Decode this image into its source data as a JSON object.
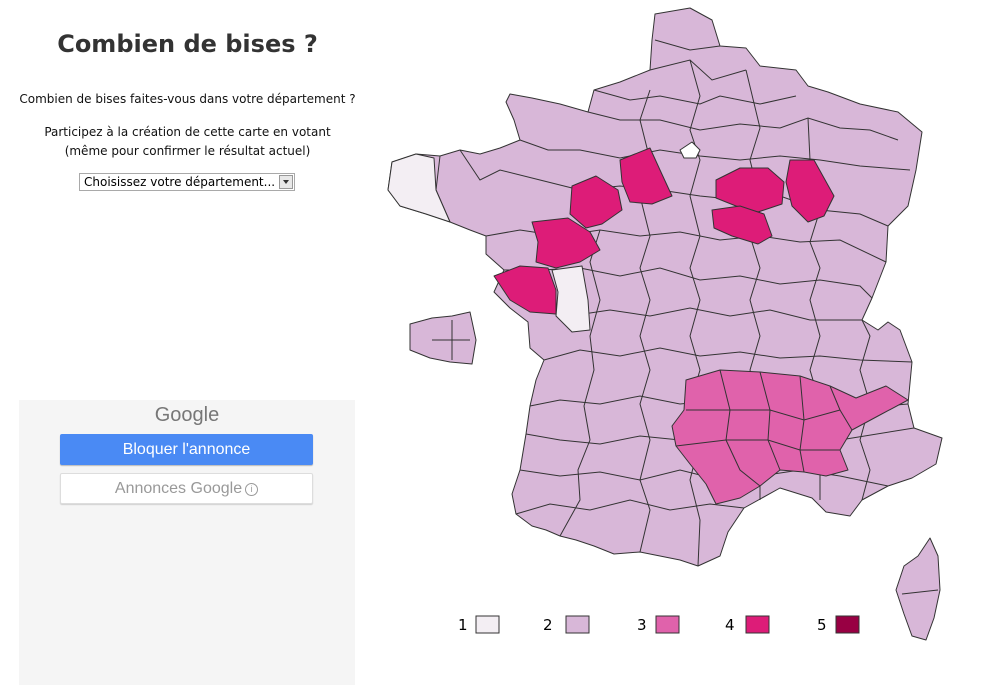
{
  "title": "Combien de bises ?",
  "question": "Combien de bises faites-vous dans votre département ?",
  "participate_line1": "Participez à la création de cette carte en votant",
  "participate_line2": "(même pour confirmer le résultat actuel)",
  "select": {
    "value": "Choisissez votre département..."
  },
  "ad": {
    "brand": "Google",
    "block_label": "Bloquer l'annonce",
    "ads_label": "Annonces Google",
    "info_icon": "i"
  },
  "colors": {
    "1": "#f3eef3",
    "2": "#d8b7d8",
    "3": "#e062ab",
    "4": "#dd1c78",
    "5": "#980043"
  },
  "legend": [
    {
      "label": "1",
      "color": "#f3eef3"
    },
    {
      "label": "2",
      "color": "#d8b7d8"
    },
    {
      "label": "3",
      "color": "#e062ab"
    },
    {
      "label": "4",
      "color": "#dd1c78"
    },
    {
      "label": "5",
      "color": "#980043"
    }
  ]
}
